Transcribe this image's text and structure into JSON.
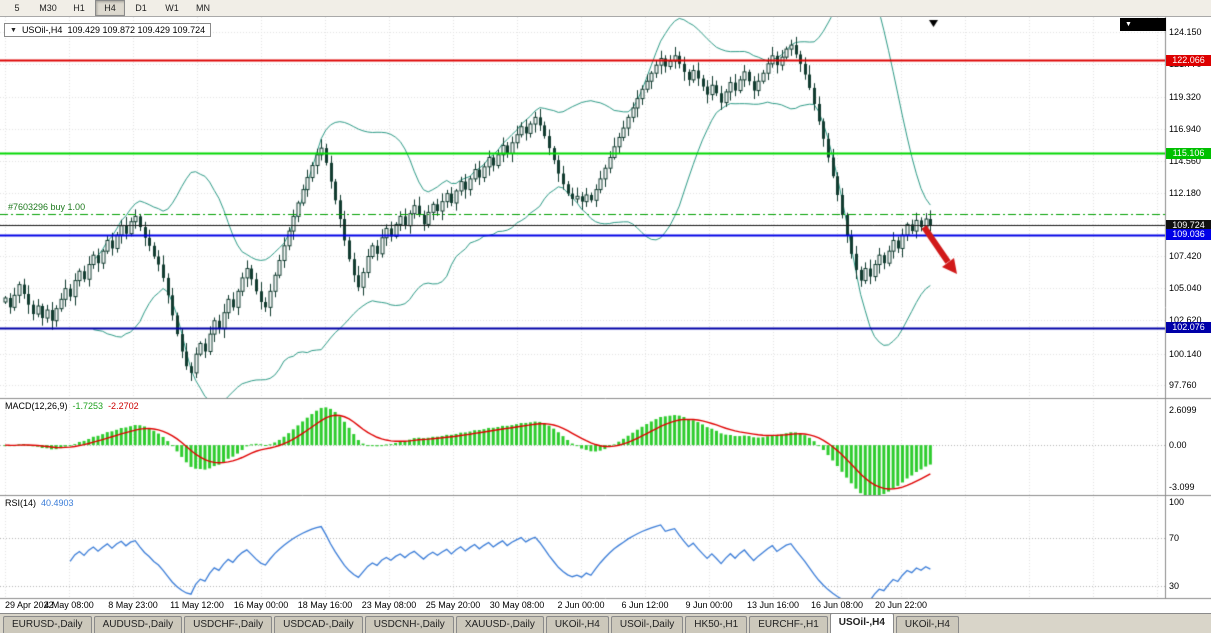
{
  "toolbar": {
    "timeframes": [
      "5",
      "M30",
      "H1",
      "H4",
      "D1",
      "W1",
      "MN"
    ],
    "active_index": 3
  },
  "chart": {
    "title_symbol": "USOil-,H4",
    "title_ohlc": "109.429 109.872 109.429 109.724",
    "order_label": "#7603296 buy 1.00",
    "order_line": {
      "value": 110.55,
      "color": "#00a000",
      "style": "dashdot"
    },
    "price_axis_ticks": [
      {
        "label": "124.150",
        "value": 124.15
      },
      {
        "label": "121.770",
        "value": 121.77
      },
      {
        "label": "119.320",
        "value": 119.32
      },
      {
        "label": "116.940",
        "value": 116.94
      },
      {
        "label": "114.560",
        "value": 114.56
      },
      {
        "label": "112.180",
        "value": 112.18
      },
      {
        "label": "109.800",
        "value": 109.8
      },
      {
        "label": "107.420",
        "value": 107.42
      },
      {
        "label": "105.040",
        "value": 105.04
      },
      {
        "label": "102.620",
        "value": 102.62
      },
      {
        "label": "100.140",
        "value": 100.14
      },
      {
        "label": "97.760",
        "value": 97.76
      }
    ],
    "badges": [
      {
        "label": "122.066",
        "value": 122.066,
        "bg": "#dd0000"
      },
      {
        "label": "115.106",
        "value": 115.106,
        "bg": "#00c000"
      },
      {
        "label": "109.724",
        "value": 109.724,
        "bg": "#111111"
      },
      {
        "label": "109.036",
        "value": 109.036,
        "bg": "#0000e6"
      },
      {
        "label": "102.076",
        "value": 102.076,
        "bg": "#0000a8"
      }
    ],
    "hlines": [
      {
        "value": 122.066,
        "color": "#dd0000",
        "width": 2,
        "style": "solid"
      },
      {
        "value": 115.106,
        "color": "#00d800",
        "width": 2,
        "style": "solid"
      },
      {
        "value": 109.724,
        "color": "#1a1a1a",
        "width": 1,
        "style": "solid"
      },
      {
        "value": 109.036,
        "color": "#0000e6",
        "width": 2,
        "style": "solid"
      },
      {
        "value": 102.076,
        "color": "#0000a8",
        "width": 2,
        "style": "solid"
      }
    ],
    "trend_arrow_color": "#d11919"
  },
  "macd": {
    "label": "MACD(12,26,9)",
    "value_main": "-1.7253",
    "value_signal": "-2.2702",
    "ticks": [
      {
        "label": "2.6099",
        "value": 2.6099
      },
      {
        "label": "0.00",
        "value": 0
      },
      {
        "label": "-3.099",
        "value": -3.099
      }
    ]
  },
  "rsi": {
    "label": "RSI(14)",
    "value": "40.4903",
    "ticks": [
      {
        "label": "100",
        "value": 100
      },
      {
        "label": "70",
        "value": 70
      },
      {
        "label": "30",
        "value": 30
      }
    ],
    "levels": [
      70,
      30
    ]
  },
  "time_axis": {
    "labels": [
      "29 Apr 2022",
      "4 May 08:00",
      "8 May 23:00",
      "11 May 12:00",
      "16 May 00:00",
      "18 May 16:00",
      "23 May 08:00",
      "25 May 20:00",
      "30 May 08:00",
      "2 Jun 00:00",
      "6 Jun 12:00",
      "9 Jun 00:00",
      "13 Jun 16:00",
      "16 Jun 08:00",
      "20 Jun 22:00"
    ]
  },
  "tabs": {
    "items": [
      "EURUSD-,Daily",
      "AUDUSD-,Daily",
      "USDCHF-,Daily",
      "USDCAD-,Daily",
      "USDCNH-,Daily",
      "XAUUSD-,Daily",
      "UKOil-,H4",
      "USOil-,Daily",
      "HK50-,H1",
      "EURCHF-,H1",
      "USOil-,H4",
      "UKOil-,H4"
    ],
    "active_index": 10
  },
  "colors": {
    "candle_up": "#ffffff",
    "candle_down": "#123c30",
    "candle_outline": "#123c30",
    "bollinger": "#2e9b87",
    "macd_hist": "#2ecc2e",
    "macd_signal": "#e00000",
    "rsi_line": "#3b7dd8",
    "grid": "#e2e2e2",
    "level_dotted": "#b4b4b4"
  },
  "chart_data": {
    "type": "candlestick",
    "symbol": "USOil-,H4",
    "timeframe": "H4",
    "title": "USOil-,H4 109.429 109.872 109.429 109.724",
    "ylim": [
      96.9,
      125.3
    ],
    "first_open": 104.0,
    "closes": [
      104.3,
      103.6,
      104.5,
      105.3,
      104.6,
      103.8,
      103.1,
      103.7,
      102.8,
      103.4,
      102.6,
      103.5,
      104.2,
      105.0,
      104.4,
      105.6,
      106.3,
      105.7,
      106.8,
      107.5,
      106.9,
      107.8,
      108.6,
      108.0,
      109.0,
      109.7,
      109.1,
      110.0,
      110.4,
      109.6,
      108.8,
      108.2,
      107.4,
      106.8,
      105.8,
      104.5,
      103.0,
      101.6,
      100.3,
      99.2,
      98.7,
      100.1,
      100.9,
      100.3,
      101.6,
      102.6,
      102.0,
      103.2,
      104.2,
      103.6,
      104.8,
      105.8,
      106.5,
      105.7,
      104.8,
      104.0,
      103.6,
      104.8,
      106.0,
      107.1,
      108.2,
      109.3,
      110.4,
      111.4,
      112.4,
      113.3,
      114.2,
      115.0,
      115.5,
      114.4,
      113.0,
      111.6,
      110.2,
      108.6,
      107.2,
      106.0,
      105.1,
      106.2,
      107.4,
      108.2,
      107.6,
      108.8,
      109.5,
      108.9,
      109.8,
      110.4,
      109.7,
      110.6,
      111.2,
      110.5,
      109.8,
      110.7,
      111.3,
      110.8,
      111.5,
      112.1,
      111.4,
      112.3,
      113.0,
      112.4,
      113.2,
      113.9,
      113.3,
      114.1,
      114.8,
      114.2,
      115.0,
      115.7,
      115.1,
      115.9,
      116.5,
      117.1,
      116.6,
      117.3,
      117.8,
      117.2,
      116.4,
      115.5,
      114.6,
      113.6,
      112.8,
      112.1,
      111.7,
      111.9,
      111.5,
      112.0,
      111.6,
      112.4,
      113.2,
      114.0,
      114.8,
      115.6,
      116.3,
      117.0,
      117.8,
      118.5,
      119.2,
      119.9,
      120.5,
      121.1,
      121.7,
      122.2,
      121.6,
      122.0,
      122.4,
      121.8,
      121.2,
      120.6,
      121.3,
      120.7,
      120.1,
      119.5,
      120.2,
      119.6,
      118.9,
      119.7,
      120.4,
      119.8,
      120.6,
      121.2,
      120.5,
      119.8,
      120.5,
      121.1,
      121.8,
      122.4,
      121.7,
      122.3,
      122.9,
      123.2,
      122.5,
      121.8,
      121.0,
      120.0,
      118.8,
      117.5,
      116.2,
      114.8,
      113.4,
      112.0,
      110.5,
      109.0,
      107.6,
      106.4,
      105.6,
      106.5,
      105.9,
      106.8,
      107.5,
      106.9,
      107.8,
      108.6,
      108.0,
      109.0,
      109.8,
      109.3,
      110.1,
      109.6,
      110.2,
      109.7
    ],
    "indicators": {
      "bollinger": {
        "period": 20,
        "deviation": 2
      },
      "macd": {
        "fast": 12,
        "slow": 26,
        "signal": 9
      },
      "rsi": {
        "period": 14
      }
    }
  }
}
